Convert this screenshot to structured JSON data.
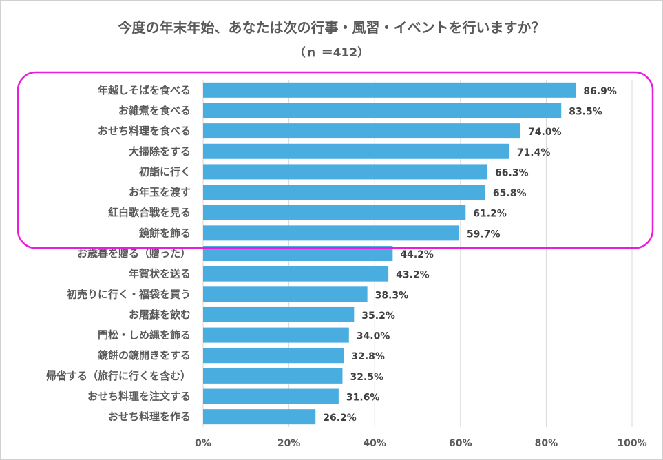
{
  "title": "今度の年末年始、あなたは次の行事・風習・イベントを行いますか？",
  "subtitle": "（ｎ ＝412）",
  "colors": {
    "bar": "#49ADE0",
    "highlight_border": "#E91EDC",
    "grid": "#D9D9D9",
    "text": "#595959"
  },
  "chart_data": {
    "type": "bar",
    "orientation": "horizontal",
    "title": "今度の年末年始、あなたは次の行事・風習・イベントを行いますか？",
    "subtitle": "（ｎ ＝412）",
    "categories": [
      "年越しそばを食べる",
      "お雑煮を食べる",
      "おせち料理を食べる",
      "大掃除をする",
      "初詣に行く",
      "お年玉を渡す",
      "紅白歌合戦を見る",
      "鏡餅を飾る",
      "お歳暮を贈る（贈った）",
      "年賀状を送る",
      "初売りに行く・福袋を買う",
      "お屠蘇を飲む",
      "門松・しめ縄を飾る",
      "鏡餅の鏡開きをする",
      "帰省する（旅行に行くを含む）",
      "おせち料理を注文する",
      "おせち料理を作る"
    ],
    "values": [
      86.9,
      83.5,
      74.0,
      71.4,
      66.3,
      65.8,
      61.2,
      59.7,
      44.2,
      43.2,
      38.3,
      35.2,
      34.0,
      32.8,
      32.5,
      31.6,
      26.2
    ],
    "value_labels": [
      "86.9%",
      "83.5%",
      "74.0%",
      "71.4%",
      "66.3%",
      "65.8%",
      "61.2%",
      "59.7%",
      "44.2%",
      "43.2%",
      "38.3%",
      "35.2%",
      "34.0%",
      "32.8%",
      "32.5%",
      "31.6%",
      "26.2%"
    ],
    "x_ticks": [
      "0%",
      "20%",
      "40%",
      "60%",
      "80%",
      "100%"
    ],
    "xlim": [
      0,
      100
    ],
    "grid": true,
    "highlighted_top_n": 8
  }
}
